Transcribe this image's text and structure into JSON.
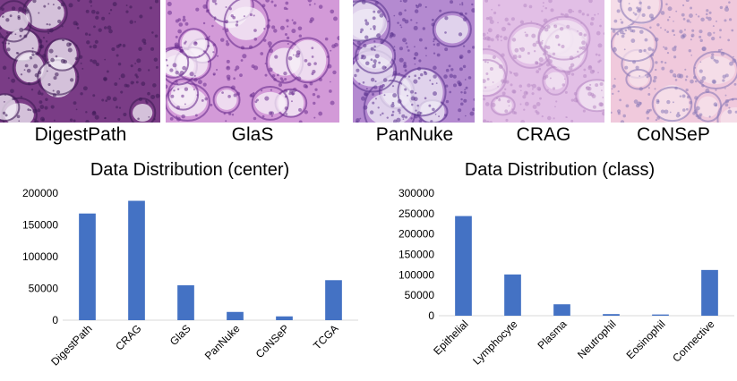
{
  "tiles": [
    {
      "label": "DigestPath",
      "bg": "#7a3c86",
      "fg": "#3d1a55",
      "spot": "#f3eef6"
    },
    {
      "label": "GlaS",
      "bg": "#d39ad8",
      "fg": "#6b2f90",
      "spot": "#f7f0f8"
    },
    {
      "label": "PanNuke",
      "bg": "#b48ad0",
      "fg": "#5c3590",
      "spot": "#efe9f6"
    },
    {
      "label": "CRAG",
      "bg": "#e2bfe6",
      "fg": "#b88ac4",
      "spot": "#f3e7f3"
    },
    {
      "label": "CoNSeP",
      "bg": "#f0c9dc",
      "fg": "#8a7ab8",
      "spot": "#f7e3ec"
    }
  ],
  "chart_data": [
    {
      "type": "bar",
      "title": "Data Distribution (center)",
      "categories": [
        "DigestPath",
        "CRAG",
        "GlaS",
        "PanNuke",
        "CoNSeP",
        "TCGA"
      ],
      "values": [
        168000,
        188000,
        55000,
        13000,
        6000,
        63000
      ],
      "ylim": [
        0,
        200000
      ],
      "yticks": [
        0,
        50000,
        100000,
        150000,
        200000
      ],
      "color": "#4472c4",
      "grid": false,
      "xlabel": "",
      "ylabel": ""
    },
    {
      "type": "bar",
      "title": "Data Distribution (class)",
      "categories": [
        "Epithelial",
        "Lymphocyte",
        "Plasma",
        "Neutrophil",
        "Eosinophil",
        "Connective"
      ],
      "values": [
        244000,
        101000,
        28000,
        4000,
        3000,
        112000
      ],
      "ylim": [
        0,
        300000
      ],
      "yticks": [
        0,
        50000,
        100000,
        150000,
        200000,
        250000,
        300000
      ],
      "color": "#4472c4",
      "grid": false,
      "xlabel": "",
      "ylabel": ""
    }
  ]
}
